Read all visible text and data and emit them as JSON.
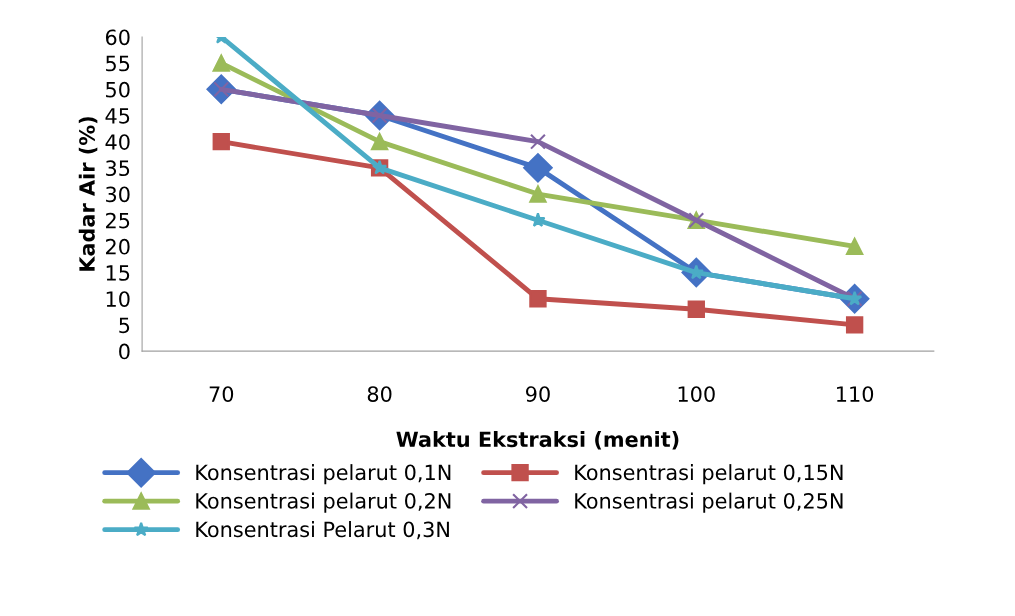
{
  "chart_data": {
    "type": "line",
    "xlabel": "Waktu Ekstraksi (menit)",
    "ylabel": "Kadar Air (%)",
    "categories": [
      "70",
      "80",
      "90",
      "100",
      "110"
    ],
    "ylim": [
      0,
      60
    ],
    "yticks": [
      0,
      5,
      10,
      15,
      20,
      25,
      30,
      35,
      40,
      45,
      50,
      55,
      60
    ],
    "grid": false,
    "legend": "bottom",
    "series": [
      {
        "name": "Konsentrasi pelarut 0,1N",
        "color": "#4472c4",
        "marker": "diamond",
        "values": [
          50,
          45,
          35,
          15,
          10
        ]
      },
      {
        "name": "Konsentrasi pelarut 0,15N",
        "color": "#c0504d",
        "marker": "square",
        "values": [
          40,
          35,
          10,
          8,
          5
        ]
      },
      {
        "name": "Konsentrasi pelarut 0,2N",
        "color": "#9bbb59",
        "marker": "triangle",
        "values": [
          55,
          40,
          30,
          25,
          20
        ]
      },
      {
        "name": "Konsentrasi pelarut 0,25N",
        "color": "#8064a2",
        "marker": "cross",
        "values": [
          50,
          45,
          40,
          25,
          10
        ]
      },
      {
        "name": "Konsentrasi Pelarut 0,3N",
        "color": "#4bacc6",
        "marker": "star",
        "values": [
          60,
          35,
          25,
          15,
          10
        ]
      }
    ]
  }
}
